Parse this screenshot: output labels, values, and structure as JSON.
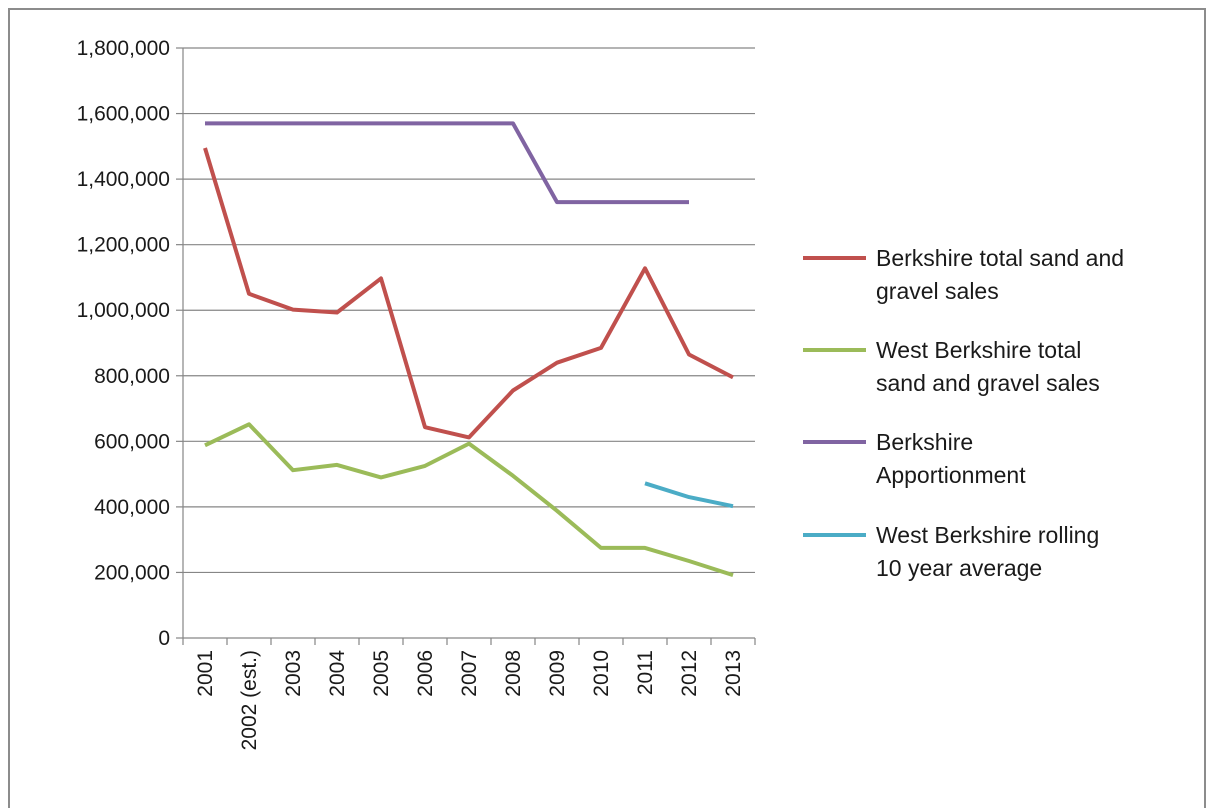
{
  "chart_data": {
    "type": "line",
    "title": "",
    "xlabel": "",
    "ylabel": "",
    "ylim": [
      0,
      1800000
    ],
    "yticks": [
      0,
      200000,
      400000,
      600000,
      800000,
      1000000,
      1200000,
      1400000,
      1600000,
      1800000
    ],
    "ytick_labels": [
      "0",
      "200,000",
      "400,000",
      "600,000",
      "800,000",
      "1,000,000",
      "1,200,000",
      "1,400,000",
      "1,600,000",
      "1,800,000"
    ],
    "categories": [
      "2001",
      "2002 (est.)",
      "2003",
      "2004",
      "2005",
      "2006",
      "2007",
      "2008",
      "2009",
      "2010",
      "2011",
      "2012",
      "2013"
    ],
    "grid": true,
    "legend_position": "right",
    "series": [
      {
        "name": "Berkshire total sand and gravel sales",
        "legend_lines": [
          "Berkshire total sand and",
          "gravel sales"
        ],
        "color": "#c0504d",
        "values": [
          1495000,
          1050000,
          1002000,
          993000,
          1097000,
          643000,
          612000,
          755000,
          840000,
          885000,
          1128000,
          865000,
          795000
        ]
      },
      {
        "name": "West Berkshire total sand and gravel sales",
        "legend_lines": [
          "West Berkshire total",
          "sand and gravel sales"
        ],
        "color": "#9bbb59",
        "values": [
          588000,
          652000,
          512000,
          528000,
          490000,
          525000,
          593000,
          495000,
          388000,
          275000,
          275000,
          235000,
          192000
        ]
      },
      {
        "name": "Berkshire Apportionment",
        "legend_lines": [
          "Berkshire",
          "Apportionment"
        ],
        "color": "#8064a2",
        "values": [
          1570000,
          1570000,
          1570000,
          1570000,
          1570000,
          1570000,
          1570000,
          1570000,
          1330000,
          1330000,
          1330000,
          1330000,
          null
        ]
      },
      {
        "name": "West Berkshire rolling 10 year average",
        "legend_lines": [
          "West Berkshire rolling",
          "10 year average"
        ],
        "color": "#4bacc6",
        "values": [
          null,
          null,
          null,
          null,
          null,
          null,
          null,
          null,
          null,
          null,
          472000,
          430000,
          402000
        ]
      }
    ]
  }
}
